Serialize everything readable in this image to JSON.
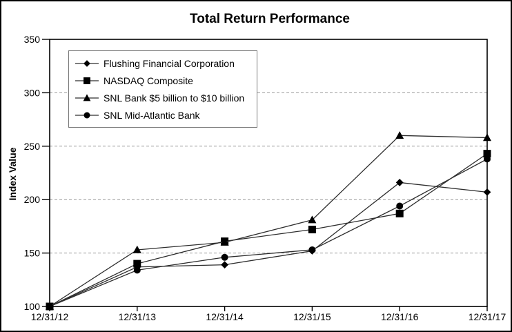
{
  "chart_data": {
    "type": "line",
    "title": "Total Return Performance",
    "xlabel": "",
    "ylabel": "Index Value",
    "ylim": [
      100,
      350
    ],
    "yticks": [
      100,
      150,
      200,
      250,
      300,
      350
    ],
    "categories": [
      "12/31/12",
      "12/31/13",
      "12/31/14",
      "12/31/15",
      "12/31/16",
      "12/31/17"
    ],
    "series": [
      {
        "name": "Flushing Financial Corporation",
        "marker": "diamond",
        "values": [
          100,
          137,
          139,
          152,
          216,
          207
        ]
      },
      {
        "name": "NASDAQ Composite",
        "marker": "square",
        "values": [
          100,
          140,
          161,
          172,
          187,
          243
        ]
      },
      {
        "name": "SNL Bank $5 billion to $10 billion",
        "marker": "triangle",
        "values": [
          100,
          153,
          160,
          181,
          260,
          258
        ]
      },
      {
        "name": "SNL Mid-Atlantic Bank",
        "marker": "circle",
        "values": [
          100,
          134,
          146,
          153,
          194,
          238
        ]
      }
    ],
    "grid": "horizontal-dashed",
    "legend_position": "upper-left-inside",
    "colors": {
      "line": "#2e2e2e",
      "marker": "#000000",
      "grid": "#999999",
      "axis": "#000000",
      "background": "#ffffff",
      "legend_border": "#777777"
    }
  }
}
